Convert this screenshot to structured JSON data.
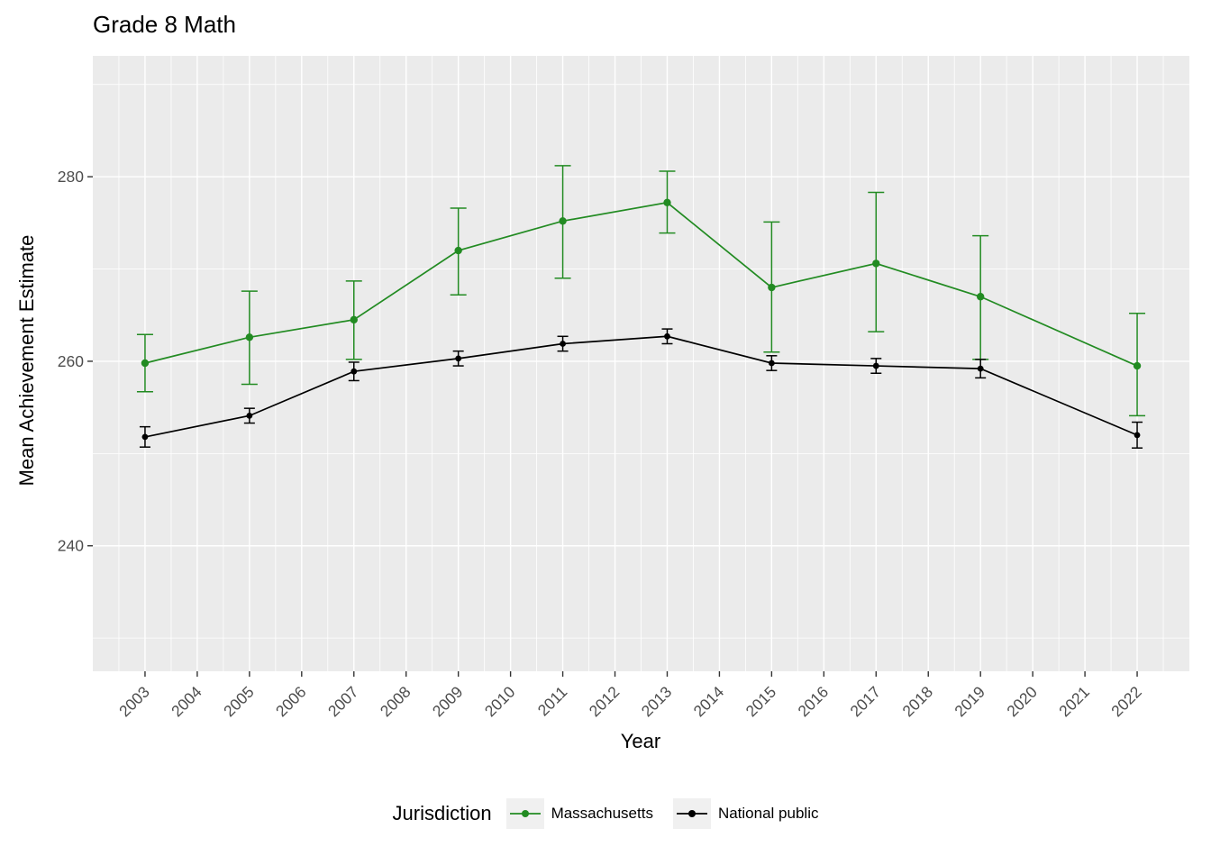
{
  "title": "Grade 8 Math",
  "x_axis": {
    "label": "Year",
    "ticks": [
      2003,
      2004,
      2005,
      2006,
      2007,
      2008,
      2009,
      2010,
      2011,
      2012,
      2013,
      2014,
      2015,
      2016,
      2017,
      2018,
      2019,
      2020,
      2021,
      2022
    ],
    "domain": [
      2002,
      2023
    ]
  },
  "y_axis": {
    "label": "Mean Achievement Estimate",
    "ticks": [
      240,
      260,
      280
    ],
    "minor_ticks": [
      230,
      250,
      270,
      290
    ],
    "domain": [
      226.4,
      293.1
    ]
  },
  "legend": {
    "title": "Jurisdiction",
    "items": [
      {
        "label": "Massachusetts",
        "color": "#228B22"
      },
      {
        "label": "National public",
        "color": "#000000"
      }
    ]
  },
  "colors": {
    "panel_bg": "#EBEBEB",
    "grid": "#FFFFFF",
    "axis_text": "#4D4D4D",
    "tick": "#333333",
    "legend_key_bg": "#F0F0F0",
    "massachusetts": "#228B22",
    "national_public": "#000000"
  },
  "chart_data": {
    "type": "line",
    "title": "Grade 8 Math",
    "xlabel": "Year",
    "ylabel": "Mean Achievement Estimate",
    "x": [
      2003,
      2005,
      2007,
      2009,
      2011,
      2013,
      2015,
      2017,
      2019,
      2022
    ],
    "x_tick_labels": [
      "2003",
      "2004",
      "2005",
      "2006",
      "2007",
      "2008",
      "2009",
      "2010",
      "2011",
      "2012",
      "2013",
      "2014",
      "2015",
      "2016",
      "2017",
      "2018",
      "2019",
      "2020",
      "2021",
      "2022"
    ],
    "ylim": [
      226.4,
      293.1
    ],
    "grid": true,
    "error_bars": true,
    "legend_position": "bottom",
    "series": [
      {
        "name": "Massachusetts",
        "color": "#228B22",
        "values": [
          259.8,
          262.6,
          264.5,
          272.0,
          275.2,
          277.2,
          268.0,
          270.6,
          267.0,
          259.5
        ],
        "ymin": [
          256.7,
          257.5,
          260.2,
          267.2,
          269.0,
          273.9,
          261.0,
          263.2,
          260.2,
          254.1
        ],
        "ymax": [
          262.9,
          267.6,
          268.7,
          276.6,
          281.2,
          280.6,
          275.1,
          278.3,
          273.6,
          265.2
        ]
      },
      {
        "name": "National public",
        "color": "#000000",
        "values": [
          251.8,
          254.1,
          258.9,
          260.3,
          261.9,
          262.7,
          259.8,
          259.5,
          259.2,
          252.0
        ],
        "ymin": [
          250.7,
          253.3,
          257.9,
          259.5,
          261.1,
          261.9,
          259.0,
          258.7,
          258.2,
          250.6
        ],
        "ymax": [
          252.9,
          254.9,
          259.9,
          261.1,
          262.7,
          263.5,
          260.6,
          260.3,
          260.2,
          253.4
        ]
      }
    ]
  }
}
